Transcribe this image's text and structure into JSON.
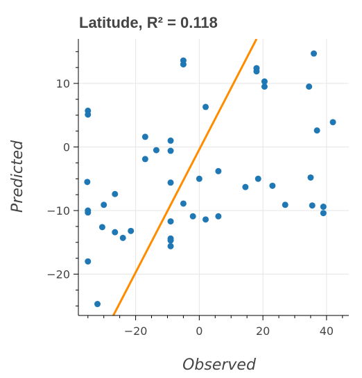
{
  "chart_data": {
    "type": "scatter",
    "title": "Latitude, R² = 0.118",
    "xlabel": "Observed",
    "ylabel": "Predicted",
    "xlim": [
      -38,
      47
    ],
    "ylim": [
      -26.5,
      17
    ],
    "xticks": [
      -20,
      0,
      20,
      40
    ],
    "yticks": [
      -20,
      -10,
      0,
      10
    ],
    "xtick_labels": [
      "−20",
      "0",
      "20",
      "40"
    ],
    "ytick_labels": [
      "−20",
      "−10",
      "0",
      "10"
    ],
    "x_minor_step": 5,
    "y_minor_step": 2.5,
    "grid": true,
    "colors": {
      "points": "#1f77b4",
      "fit_line": "#ff8c00"
    },
    "fit_line": {
      "x": [
        -27,
        18
      ],
      "y": [
        -26.5,
        17
      ]
    },
    "points": {
      "x": [
        -35.0,
        -35.0,
        -35.2,
        -35.0,
        -35.0,
        -35.0,
        -32.0,
        -30.5,
        -30.0,
        -26.5,
        -26.5,
        -24.0,
        -21.5,
        -17.0,
        -17.0,
        -13.5,
        -9.0,
        -9.0,
        -9.0,
        -9.0,
        -9.0,
        -9.0,
        -9.0,
        -5.0,
        -5.0,
        -5.0,
        -2.0,
        0.0,
        2.0,
        2.0,
        6.0,
        6.0,
        14.5,
        18.0,
        18.0,
        18.5,
        20.5,
        20.5,
        23.0,
        27.0,
        34.5,
        35.0,
        35.5,
        36.0,
        37.0,
        39.0,
        39.0,
        42.0
      ],
      "y": [
        5.7,
        5.1,
        -5.5,
        -10.0,
        -10.3,
        -18.0,
        -24.7,
        -12.6,
        -9.1,
        -7.4,
        -13.4,
        -14.3,
        -13.2,
        1.6,
        -1.9,
        -0.5,
        1.0,
        -0.6,
        -5.6,
        -11.7,
        -14.4,
        -14.7,
        -15.6,
        13.6,
        13.0,
        -8.9,
        -10.9,
        -5.0,
        6.3,
        -11.4,
        -3.8,
        -10.9,
        -6.3,
        12.4,
        11.9,
        -5.0,
        10.3,
        9.5,
        -6.1,
        -9.1,
        9.5,
        -4.8,
        -9.2,
        14.7,
        2.6,
        -9.4,
        -10.4,
        3.9
      ]
    }
  }
}
